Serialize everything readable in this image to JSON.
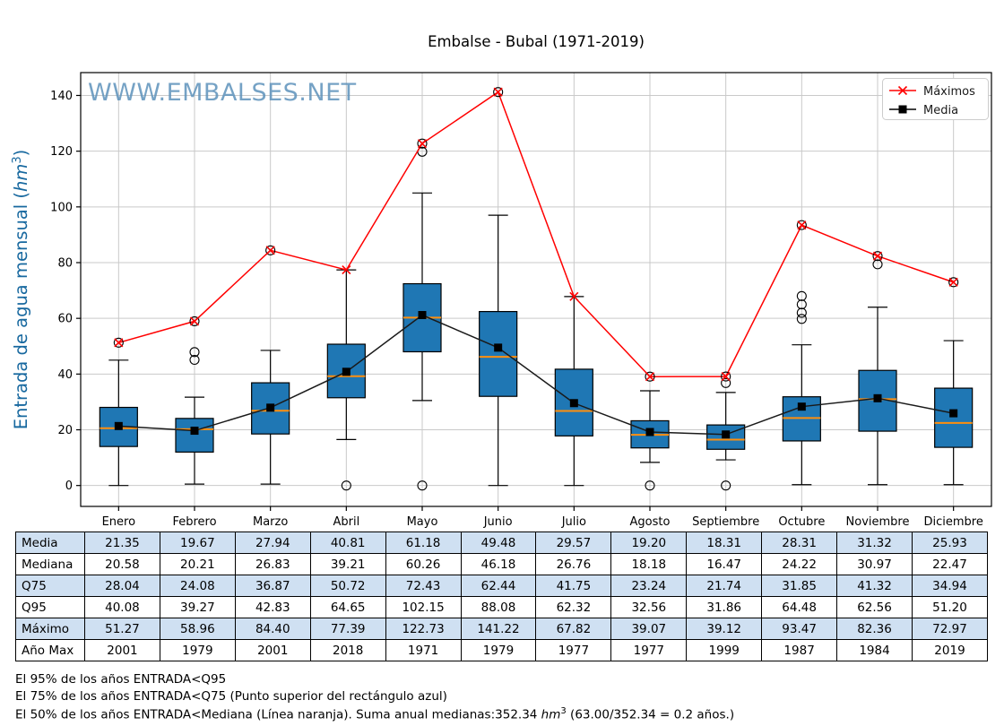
{
  "title": "Embalse - Bubal (1971-2019)",
  "watermark": "WWW.EMBALSES.NET",
  "ylabel": {
    "pre": "Entrada de agua mensual (",
    "unit": "hm",
    "sup": "3",
    "post": ")"
  },
  "chart_data": {
    "type": "boxplot+lines",
    "title": "Embalse - Bubal (1971-2019)",
    "categories": [
      "Enero",
      "Febrero",
      "Marzo",
      "Abril",
      "Mayo",
      "Junio",
      "Julio",
      "Agosto",
      "Septiembre",
      "Octubre",
      "Noviembre",
      "Diciembre"
    ],
    "yticks": [
      0,
      20,
      40,
      60,
      80,
      100,
      120,
      140
    ],
    "ylim": [
      -7.5,
      148.2
    ],
    "grid": true,
    "legend": {
      "position": "top-right",
      "items": [
        {
          "label": "Máximos",
          "marker": "x",
          "color": "#ff0000"
        },
        {
          "label": "Media",
          "marker": "square",
          "color": "#000000"
        }
      ]
    },
    "series": [
      {
        "name": "Máximos",
        "values": [
          51.27,
          58.96,
          84.4,
          77.39,
          122.73,
          141.22,
          67.82,
          39.07,
          39.12,
          93.47,
          82.36,
          72.97
        ]
      },
      {
        "name": "Media",
        "values": [
          21.35,
          19.67,
          27.94,
          40.81,
          61.18,
          49.48,
          29.57,
          19.2,
          18.31,
          28.31,
          31.32,
          25.93
        ]
      }
    ],
    "boxplot": {
      "median": [
        20.58,
        20.21,
        26.83,
        39.21,
        60.26,
        46.18,
        26.76,
        18.18,
        16.47,
        24.22,
        30.97,
        22.47
      ],
      "q1": [
        14,
        12,
        18.5,
        31.5,
        48,
        32,
        17.8,
        13.5,
        13,
        16,
        19.5,
        13.7
      ],
      "q3": [
        28.04,
        24.08,
        36.87,
        50.72,
        72.43,
        62.44,
        41.75,
        23.24,
        21.74,
        31.85,
        41.32,
        34.94
      ],
      "whisker_low": [
        0,
        0.5,
        0.5,
        16.5,
        30.5,
        0,
        0,
        8.3,
        9.2,
        0.3,
        0.3,
        0.3
      ],
      "whisker_high": [
        45,
        31.7,
        48.5,
        77.39,
        105,
        97,
        67.82,
        34,
        33.4,
        50.5,
        64,
        52
      ],
      "max_circled": [
        true,
        true,
        true,
        false,
        true,
        true,
        false,
        true,
        true,
        true,
        true,
        true
      ],
      "fliers": [
        [],
        [
          47.9,
          45.1
        ],
        [],
        [
          0
        ],
        [
          119.8,
          0
        ],
        [],
        [],
        [
          0
        ],
        [
          36.8,
          0
        ],
        [
          68,
          65,
          62,
          59.8
        ],
        [
          79.4
        ],
        []
      ]
    },
    "colors": {
      "box_fill": "#1f77b4",
      "box_edge": "#000000",
      "median": "#ff8f0e",
      "max_line": "#ff0000",
      "media_line": "#1a1a1a",
      "grid": "#c9c9c9",
      "watermark": "#5e92bb",
      "ylabel": "#17689f",
      "spine": "#000000"
    }
  },
  "table": {
    "row_labels": [
      "Media",
      "Mediana",
      "Q75",
      "Q95",
      "Máximo",
      "Año Max"
    ],
    "rows": [
      [
        "21.35",
        "19.67",
        "27.94",
        "40.81",
        "61.18",
        "49.48",
        "29.57",
        "19.20",
        "18.31",
        "28.31",
        "31.32",
        "25.93"
      ],
      [
        "20.58",
        "20.21",
        "26.83",
        "39.21",
        "60.26",
        "46.18",
        "26.76",
        "18.18",
        "16.47",
        "24.22",
        "30.97",
        "22.47"
      ],
      [
        "28.04",
        "24.08",
        "36.87",
        "50.72",
        "72.43",
        "62.44",
        "41.75",
        "23.24",
        "21.74",
        "31.85",
        "41.32",
        "34.94"
      ],
      [
        "40.08",
        "39.27",
        "42.83",
        "64.65",
        "102.15",
        "88.08",
        "62.32",
        "32.56",
        "31.86",
        "64.48",
        "62.56",
        "51.20"
      ],
      [
        "51.27",
        "58.96",
        "84.40",
        "77.39",
        "122.73",
        "141.22",
        "67.82",
        "39.07",
        "39.12",
        "93.47",
        "82.36",
        "72.97"
      ],
      [
        "2001",
        "1979",
        "2001",
        "2018",
        "1971",
        "1979",
        "1977",
        "1977",
        "1999",
        "1987",
        "1984",
        "2019"
      ]
    ],
    "row_bg_alt": "#cfe0f2"
  },
  "footnotes": {
    "line1": "El 95% de los años ENTRADA<Q95",
    "line2": "El 75% de los años ENTRADA<Q75 (Punto superior del rectángulo azul)",
    "line3_pre": "El 50% de los años ENTRADA<Mediana (Línea naranja). Suma anual medianas:352.34 ",
    "line3_unit": "hm",
    "line3_sup": "3",
    "line3_post": " (63.00/352.34 = 0.2 años.)"
  }
}
